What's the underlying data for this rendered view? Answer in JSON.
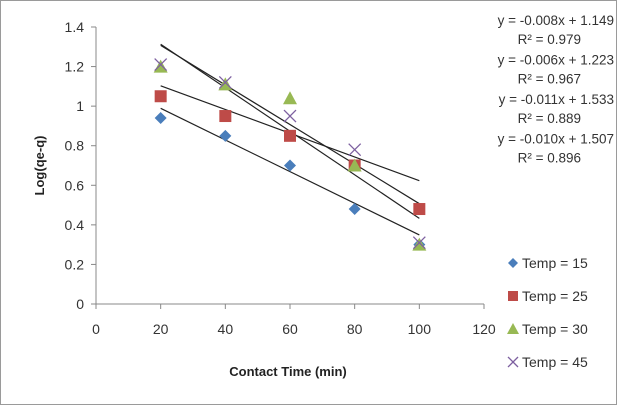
{
  "chart_data": {
    "type": "scatter",
    "xlabel": "Contact Time (min)",
    "ylabel": "Log(qe-q)",
    "xlim": [
      0,
      120
    ],
    "ylim": [
      0,
      1.4
    ],
    "xticks": [
      0,
      20,
      40,
      60,
      80,
      100,
      120
    ],
    "yticks": [
      0,
      0.2,
      0.4,
      0.6,
      0.8,
      1,
      1.2,
      1.4
    ],
    "grid": false,
    "legend_position": "right",
    "series": [
      {
        "name": "Temp = 15",
        "marker": "diamond",
        "color": "#4a7ebb",
        "x": [
          20,
          40,
          60,
          80,
          100
        ],
        "y": [
          0.94,
          0.85,
          0.7,
          0.48,
          0.3
        ]
      },
      {
        "name": "Temp = 25",
        "marker": "square",
        "color": "#be4b48",
        "x": [
          20,
          40,
          60,
          80,
          100
        ],
        "y": [
          1.05,
          0.95,
          0.85,
          0.7,
          0.48
        ]
      },
      {
        "name": "Temp = 30",
        "marker": "triangle",
        "color": "#98b954",
        "x": [
          20,
          40,
          60,
          80,
          100
        ],
        "y": [
          1.2,
          1.11,
          1.04,
          0.7,
          0.3
        ]
      },
      {
        "name": "Temp = 45",
        "marker": "x",
        "color": "#7d60a0",
        "x": [
          20,
          40,
          60,
          80,
          100
        ],
        "y": [
          1.21,
          1.12,
          0.95,
          0.78,
          0.31
        ]
      }
    ],
    "trendlines": [
      {
        "slope": -0.008,
        "intercept": 1.149,
        "x_range": [
          20,
          100
        ]
      },
      {
        "slope": -0.006,
        "intercept": 1.223,
        "x_range": [
          20,
          100
        ]
      },
      {
        "slope": -0.011,
        "intercept": 1.533,
        "x_range": [
          20,
          100
        ]
      },
      {
        "slope": -0.01,
        "intercept": 1.507,
        "x_range": [
          20,
          100
        ]
      }
    ],
    "annotations": [
      {
        "equation": "y = -0.008x + 1.149",
        "r2": "R² = 0.979"
      },
      {
        "equation": "y = -0.006x + 1.223",
        "r2": "R² = 0.967"
      },
      {
        "equation": "y = -0.011x + 1.533",
        "r2": "R² = 0.889"
      },
      {
        "equation": "y = -0.010x + 1.507",
        "r2": "R² = 0.896"
      }
    ]
  }
}
